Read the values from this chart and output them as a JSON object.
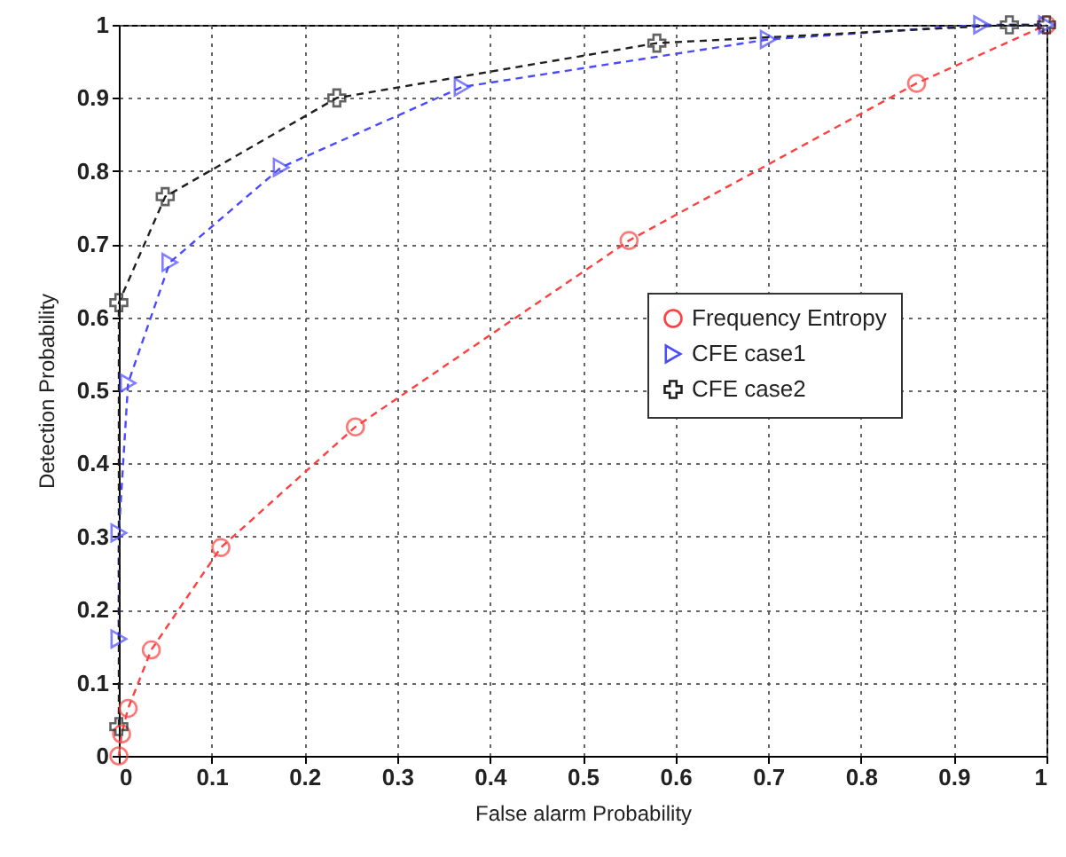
{
  "chart_data": {
    "type": "line",
    "xlabel": "False alarm Probability",
    "ylabel": "Detection Probability",
    "xlim": [
      0,
      1
    ],
    "ylim": [
      0,
      1
    ],
    "xticks": [
      0,
      0.1,
      0.2,
      0.3,
      0.4,
      0.5,
      0.6,
      0.7,
      0.8,
      0.9,
      1
    ],
    "yticks": [
      0,
      0.1,
      0.2,
      0.3,
      0.4,
      0.5,
      0.6,
      0.7,
      0.8,
      0.9,
      1
    ],
    "grid": true,
    "legend": "right",
    "line_style": "dashed",
    "series": [
      {
        "name": "Frequency Entropy",
        "color": "#ff4040",
        "marker": "circle",
        "x": [
          0,
          0.003,
          0.01,
          0.035,
          0.11,
          0.255,
          0.55,
          0.86,
          1
        ],
        "values": [
          0,
          0.03,
          0.065,
          0.145,
          0.285,
          0.45,
          0.705,
          0.92,
          1
        ]
      },
      {
        "name": "CFE case1",
        "color": "#4a4aff",
        "marker": "triangle",
        "x": [
          0,
          0,
          0.01,
          0.055,
          0.175,
          0.37,
          0.7,
          0.93,
          1
        ],
        "values": [
          0.16,
          0.305,
          0.51,
          0.675,
          0.805,
          0.915,
          0.98,
          1,
          1
        ]
      },
      {
        "name": "CFE case2",
        "color": "#202020",
        "marker": "cross",
        "x": [
          0,
          0,
          0.05,
          0.235,
          0.58,
          0.96,
          1
        ],
        "values": [
          0.04,
          0.62,
          0.765,
          0.9,
          0.975,
          1,
          1
        ]
      }
    ]
  }
}
